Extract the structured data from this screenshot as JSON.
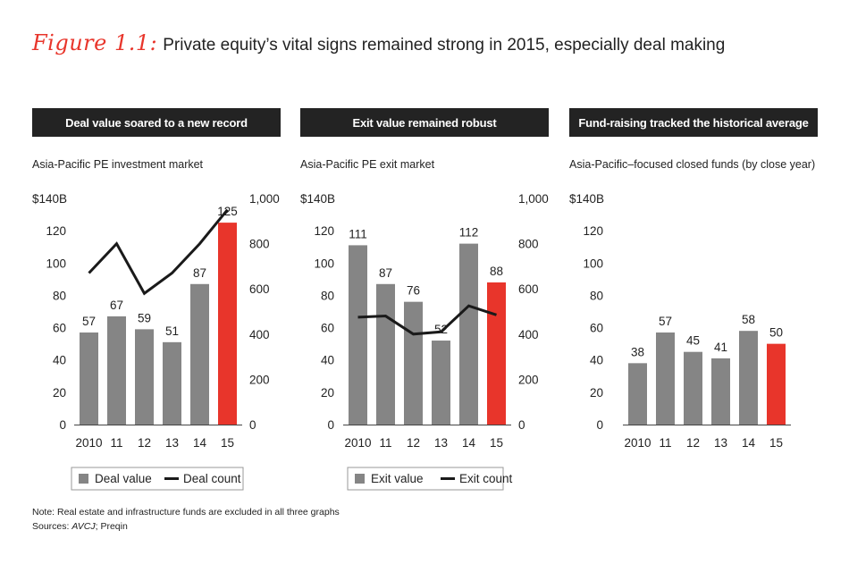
{
  "figure": {
    "label": "Figure 1.1:",
    "title": "Private equity’s vital signs remained strong in 2015, especially deal making"
  },
  "colors": {
    "bar": "#858585",
    "highlight": "#e8352b",
    "line": "#1a1a1a",
    "header_bg": "#232323"
  },
  "panels": [
    {
      "header": "Deal value soared to a new record",
      "subtitle": "Asia-Pacific PE investment market"
    },
    {
      "header": "Exit value remained robust",
      "subtitle": "Asia-Pacific PE exit market"
    },
    {
      "header": "Fund-raising tracked the historical average",
      "subtitle": "Asia-Pacific–focused closed funds (by close year)"
    }
  ],
  "chart_data": [
    {
      "type": "bar",
      "title": "Deal value soared to a new record",
      "subtitle": "Asia-Pacific PE investment market",
      "categories": [
        "2010",
        "11",
        "12",
        "13",
        "14",
        "15"
      ],
      "series": [
        {
          "name": "Deal value",
          "axis": "left",
          "values": [
            57,
            67,
            59,
            51,
            87,
            125
          ],
          "labels": [
            "57",
            "67",
            "59",
            "51",
            "87",
            "125"
          ]
        },
        {
          "name": "Deal count",
          "type": "line",
          "axis": "right",
          "values": [
            670,
            800,
            580,
            670,
            800,
            950
          ]
        }
      ],
      "y_left": {
        "range": [
          0,
          140
        ],
        "ticks": [
          "0",
          "20",
          "40",
          "60",
          "80",
          "100",
          "120",
          "$140B"
        ]
      },
      "y_right": {
        "range": [
          0,
          1000
        ],
        "ticks": [
          "0",
          "200",
          "400",
          "600",
          "800",
          "1,000"
        ]
      },
      "legend": [
        {
          "label": "Deal value",
          "kind": "bar"
        },
        {
          "label": "Deal count",
          "kind": "line"
        }
      ],
      "highlight_index": 5
    },
    {
      "type": "bar",
      "title": "Exit value remained robust",
      "subtitle": "Asia-Pacific PE exit market",
      "categories": [
        "2010",
        "11",
        "12",
        "13",
        "14",
        "15"
      ],
      "series": [
        {
          "name": "Exit value",
          "axis": "left",
          "values": [
            111,
            87,
            76,
            52,
            112,
            88
          ],
          "labels": [
            "111",
            "87",
            "76",
            "52",
            "112",
            "88"
          ]
        },
        {
          "name": "Exit count",
          "type": "line",
          "axis": "right",
          "values": [
            475,
            480,
            400,
            410,
            525,
            485
          ]
        }
      ],
      "y_left": {
        "range": [
          0,
          140
        ],
        "ticks": [
          "0",
          "20",
          "40",
          "60",
          "80",
          "100",
          "120",
          "$140B"
        ]
      },
      "y_right": {
        "range": [
          0,
          1000
        ],
        "ticks": [
          "0",
          "200",
          "400",
          "600",
          "800",
          "1,000"
        ]
      },
      "legend": [
        {
          "label": "Exit value",
          "kind": "bar"
        },
        {
          "label": "Exit count",
          "kind": "line"
        }
      ],
      "highlight_index": 5
    },
    {
      "type": "bar",
      "title": "Fund-raising tracked the historical average",
      "subtitle": "Asia-Pacific–focused closed funds (by close year)",
      "categories": [
        "2010",
        "11",
        "12",
        "13",
        "14",
        "15"
      ],
      "series": [
        {
          "name": "Fund-raising",
          "axis": "left",
          "values": [
            38,
            57,
            45,
            41,
            58,
            50
          ],
          "labels": [
            "38",
            "57",
            "45",
            "41",
            "58",
            "50"
          ]
        }
      ],
      "y_left": {
        "range": [
          0,
          140
        ],
        "ticks": [
          "0",
          "20",
          "40",
          "60",
          "80",
          "100",
          "120",
          "$140B"
        ]
      },
      "legend": [],
      "highlight_index": 5
    }
  ],
  "notes": {
    "note": "Note: Real estate and infrastructure funds are excluded in all three graphs",
    "sources_prefix": "Sources: ",
    "sources_italic": "AVCJ",
    "sources_rest": "; Preqin"
  }
}
